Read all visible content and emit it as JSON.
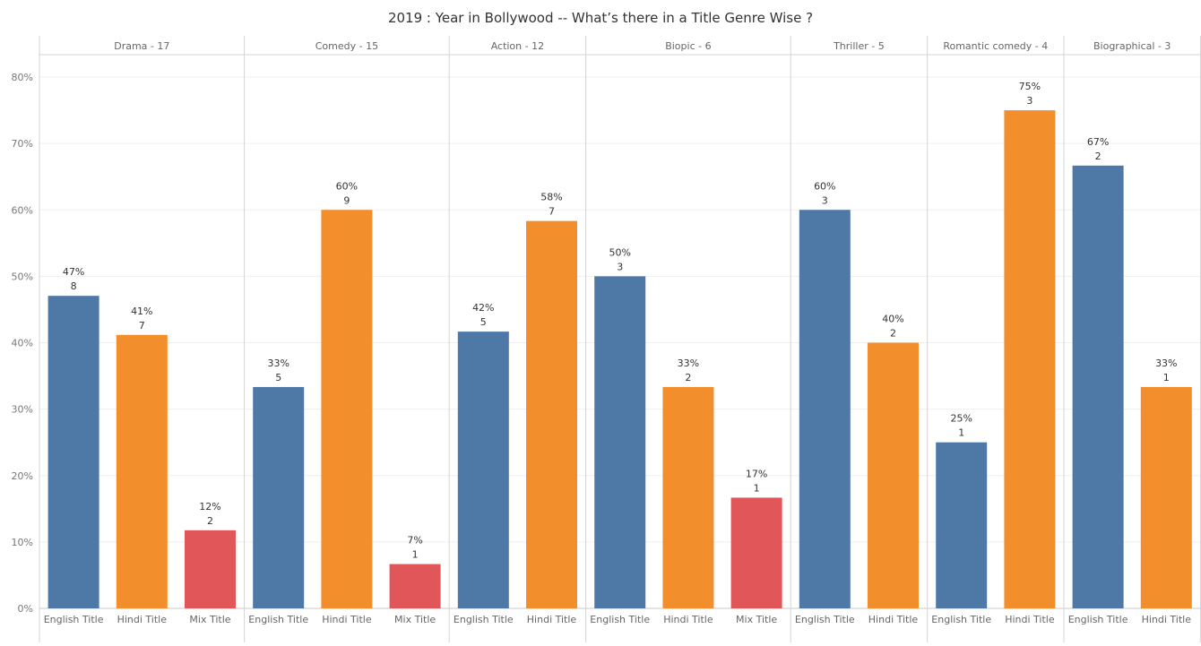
{
  "chart_data": {
    "type": "bar",
    "title": "2019 : Year in Bollywood -- What’s there in a Title Genre Wise ?",
    "ylim": [
      0,
      80
    ],
    "yticks": [
      "0%",
      "10%",
      "20%",
      "30%",
      "40%",
      "50%",
      "60%",
      "70%",
      "80%"
    ],
    "grid": true,
    "colors": {
      "English Title": "#4e79a7",
      "Hindi Title": "#f28e2b",
      "Mix Title": "#e15759"
    },
    "panels": [
      {
        "header": "Drama - 17",
        "bars": [
          {
            "category": "English Title",
            "percent": 47.06,
            "percent_label": "47%",
            "count": 8
          },
          {
            "category": "Hindi Title",
            "percent": 41.18,
            "percent_label": "41%",
            "count": 7
          },
          {
            "category": "Mix Title",
            "percent": 11.76,
            "percent_label": "12%",
            "count": 2
          }
        ]
      },
      {
        "header": "Comedy - 15",
        "bars": [
          {
            "category": "English Title",
            "percent": 33.33,
            "percent_label": "33%",
            "count": 5
          },
          {
            "category": "Hindi Title",
            "percent": 60.0,
            "percent_label": "60%",
            "count": 9
          },
          {
            "category": "Mix Title",
            "percent": 6.67,
            "percent_label": "7%",
            "count": 1
          }
        ]
      },
      {
        "header": "Action - 12",
        "bars": [
          {
            "category": "English Title",
            "percent": 41.67,
            "percent_label": "42%",
            "count": 5
          },
          {
            "category": "Hindi Title",
            "percent": 58.33,
            "percent_label": "58%",
            "count": 7
          }
        ]
      },
      {
        "header": "Biopic - 6",
        "bars": [
          {
            "category": "English Title",
            "percent": 50.0,
            "percent_label": "50%",
            "count": 3
          },
          {
            "category": "Hindi Title",
            "percent": 33.33,
            "percent_label": "33%",
            "count": 2
          },
          {
            "category": "Mix Title",
            "percent": 16.67,
            "percent_label": "17%",
            "count": 1
          }
        ]
      },
      {
        "header": "Thriller - 5",
        "bars": [
          {
            "category": "English Title",
            "percent": 60.0,
            "percent_label": "60%",
            "count": 3
          },
          {
            "category": "Hindi Title",
            "percent": 40.0,
            "percent_label": "40%",
            "count": 2
          }
        ]
      },
      {
        "header": "Romantic comedy - 4",
        "bars": [
          {
            "category": "English Title",
            "percent": 25.0,
            "percent_label": "25%",
            "count": 1
          },
          {
            "category": "Hindi Title",
            "percent": 75.0,
            "percent_label": "75%",
            "count": 3
          }
        ]
      },
      {
        "header": "Biographical - 3",
        "bars": [
          {
            "category": "English Title",
            "percent": 66.67,
            "percent_label": "67%",
            "count": 2
          },
          {
            "category": "Hindi Title",
            "percent": 33.33,
            "percent_label": "33%",
            "count": 1
          }
        ]
      }
    ]
  }
}
